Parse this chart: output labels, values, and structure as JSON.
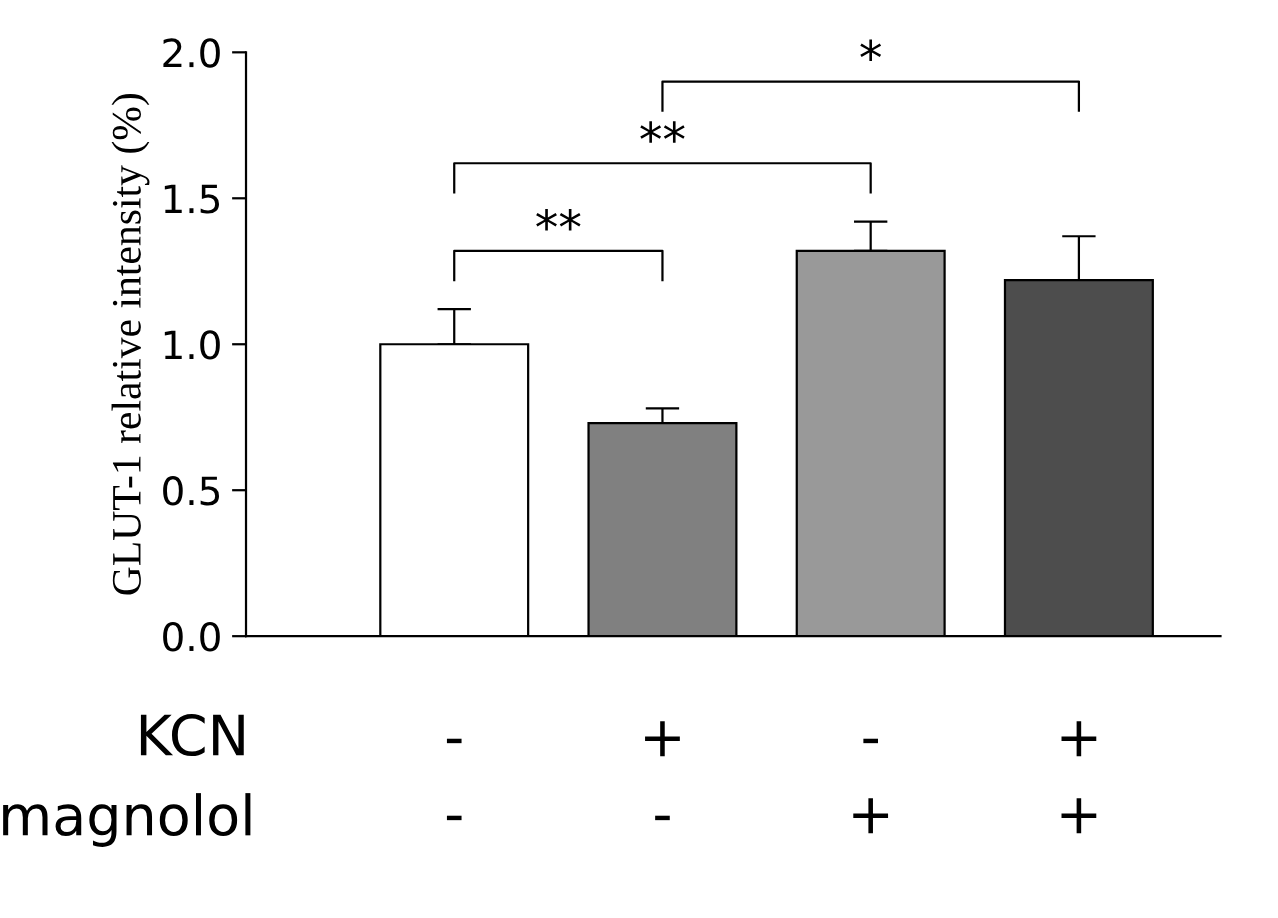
{
  "chart_data": {
    "type": "bar",
    "ylabel": "GLUT-1 relative intensity (%)",
    "categories": [
      "-\n-",
      "+\n-",
      "-\n+",
      "+\n+"
    ],
    "values": [
      1.0,
      0.73,
      1.32,
      1.22
    ],
    "colors": [
      "#ffffff",
      "#808080",
      "#999999",
      "#4d4d4d"
    ],
    "errors": [
      [
        1.0,
        1.12
      ],
      [
        0.73,
        0.78
      ],
      [
        1.32,
        1.42
      ],
      [
        1.22,
        1.37
      ]
    ],
    "ylim": [
      0,
      2.0
    ],
    "yticks": [
      {
        "value": 0,
        "label": "0.0"
      },
      {
        "value": 0.5,
        "label": "0.5"
      },
      {
        "value": 1.0,
        "label": "1.0"
      },
      {
        "value": 1.5,
        "label": "1.5"
      },
      {
        "value": 2.0,
        "label": "2.0"
      }
    ],
    "annotations": [
      "KCN",
      "magnolol",
      "**",
      "**",
      "*"
    ],
    "grid": false,
    "legend": false
  }
}
